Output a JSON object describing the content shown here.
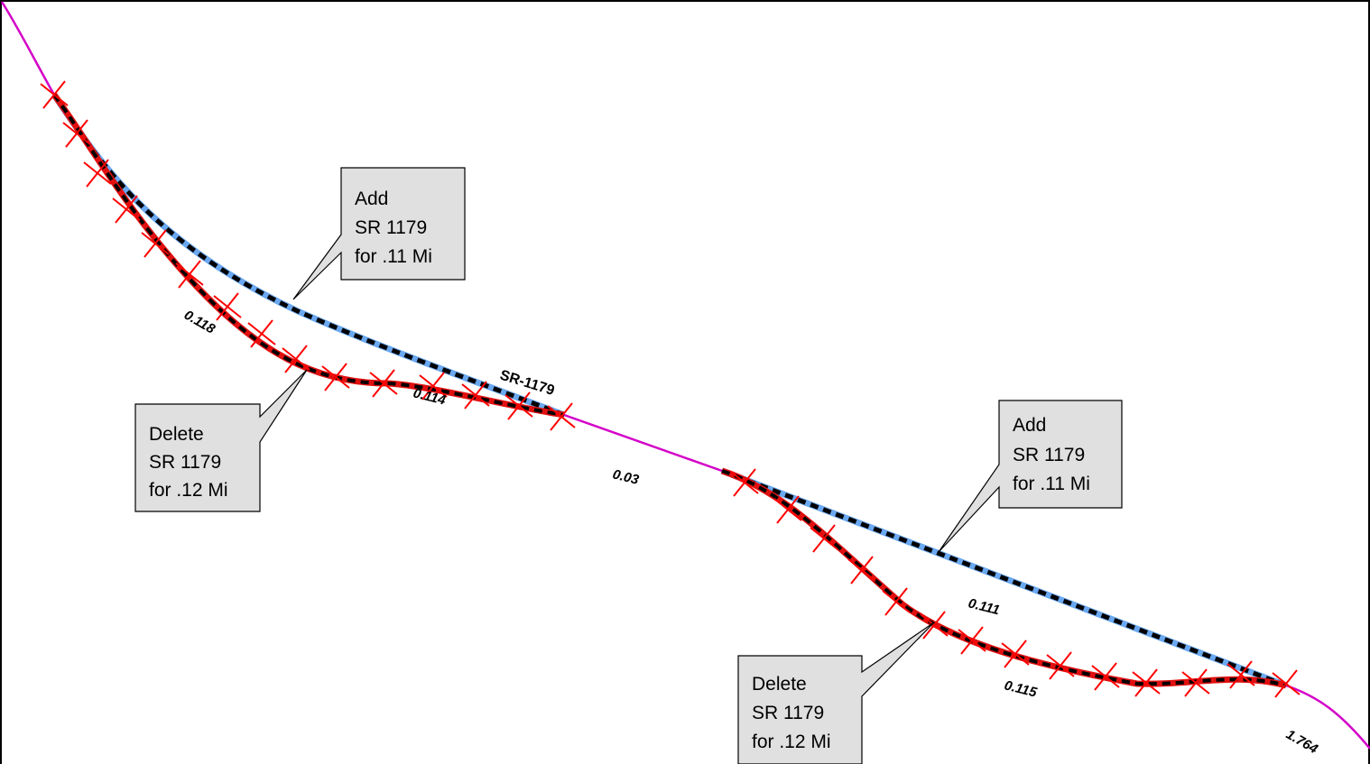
{
  "map": {
    "colors": {
      "road": "#d400c8",
      "proposed_fill": "#6aa8f0",
      "deleted_fill": "#e01010",
      "dash": "#000000",
      "x_marks": "#ff0000",
      "callout_fill": "#e0e0e0"
    },
    "route_label": "SR-1179",
    "segment_labels": [
      "0.118",
      "0.114",
      "0.03",
      "0.111",
      "0.115",
      "1.764"
    ],
    "callouts": [
      {
        "name": "add-callout-1",
        "lines": [
          "Add",
          "SR 1179",
          "for .11 Mi"
        ]
      },
      {
        "name": "delete-callout-1",
        "lines": [
          "Delete",
          "SR 1179",
          "for .12 Mi"
        ]
      },
      {
        "name": "add-callout-2",
        "lines": [
          "Add",
          "SR 1179",
          "for .11 Mi"
        ]
      },
      {
        "name": "delete-callout-2",
        "lines": [
          "Delete",
          "SR 1179",
          "for .12 Mi"
        ]
      }
    ]
  }
}
